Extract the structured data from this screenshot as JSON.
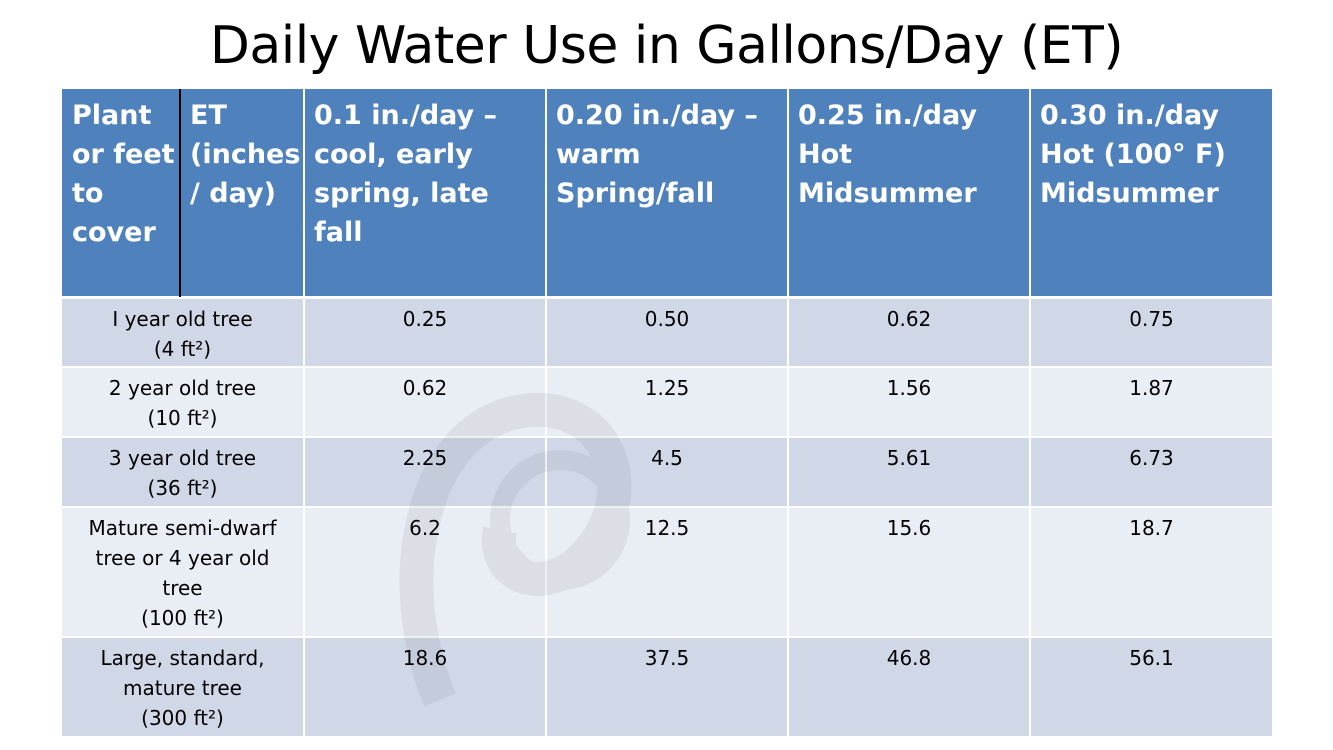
{
  "title": "Daily Water Use in Gallons/Day (ET)",
  "table": {
    "header": {
      "plant": "Plant\nor feet\nto\ncover",
      "et": "ET\n(inches\n/ day)",
      "columns": [
        "0.1 in./day –\ncool, early\nspring, late fall",
        "0.20 in./day –\nwarm\nSpring/fall",
        "0.25 in./day\nHot\nMidsummer",
        "0.30 in./day\nHot (100° F)\nMidsummer"
      ]
    },
    "rows": [
      {
        "plant": "I year old tree\n(4 ft²)",
        "values": [
          "0.25",
          "0.50",
          "0.62",
          "0.75"
        ]
      },
      {
        "plant": "2 year old tree\n(10 ft²)",
        "values": [
          "0.62",
          "1.25",
          "1.56",
          "1.87"
        ]
      },
      {
        "plant": "3 year old tree\n(36 ft²)",
        "values": [
          "2.25",
          "4.5",
          "5.61",
          "6.73"
        ]
      },
      {
        "plant": "Mature semi-dwarf\ntree or 4 year old\ntree\n(100 ft²)",
        "values": [
          "6.2",
          "12.5",
          "15.6",
          "18.7"
        ]
      },
      {
        "plant": "Large, standard,\nmature tree\n(300 ft²)",
        "values": [
          "18.6",
          "37.5",
          "46.8",
          "56.1"
        ]
      }
    ]
  }
}
